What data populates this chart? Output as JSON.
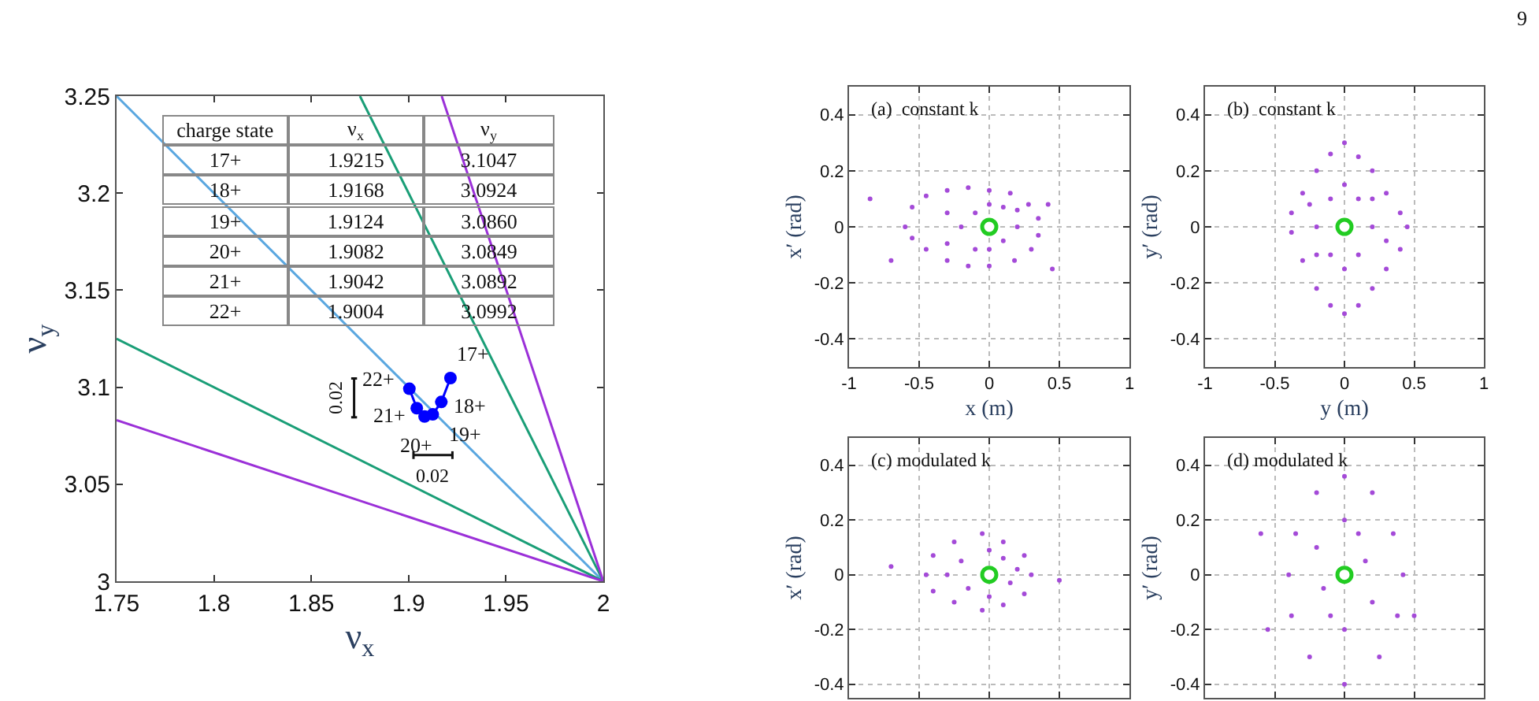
{
  "chart_data": [
    {
      "type": "line",
      "xlabel": "ν$_{x}$",
      "ylabel": "ν$_{y}$",
      "xlim": [
        1.75,
        2
      ],
      "ylim": [
        3,
        3.25
      ],
      "xticks": [
        1.75,
        1.8,
        1.85,
        1.9,
        1.95,
        2
      ],
      "yticks": [
        3,
        3.05,
        3.1,
        3.15,
        3.2,
        3.25
      ],
      "grid": false,
      "series": [
        {
          "marker": "none",
          "color": "#5aa7e0",
          "x": [
            1.75,
            2
          ],
          "values": [
            3.25,
            3
          ]
        },
        {
          "marker": "none",
          "color": "#1a9e77",
          "x": [
            1.75,
            2
          ],
          "values": [
            3.125,
            3
          ]
        },
        {
          "marker": "none",
          "color": "#9b30d8",
          "x": [
            1.75,
            2
          ],
          "values": [
            3.083,
            3
          ]
        },
        {
          "marker": "none",
          "color": "#1a9e77",
          "x": [
            1.875,
            2
          ],
          "values": [
            3.25,
            3
          ]
        },
        {
          "marker": "none",
          "color": "#9b30d8",
          "x": [
            1.917,
            2
          ],
          "values": [
            3.25,
            3
          ]
        },
        {
          "marker": "circle",
          "color": "#0000ff",
          "x": [
            1.9215,
            1.9168,
            1.9124,
            1.9082,
            1.9042,
            1.9004
          ],
          "values": [
            3.1047,
            3.0924,
            3.086,
            3.0849,
            3.0892,
            3.0992
          ]
        }
      ],
      "annotations": [
        "charge state",
        "ν$_{x}$",
        "ν$_{y}$",
        "17+",
        "1.9215",
        "3.1047",
        "18+",
        "1.9168",
        "3.0924",
        "19+",
        "1.9124",
        "3.0860",
        "20+",
        "1.9082",
        "3.0849",
        "21+",
        "1.9042",
        "3.0892",
        "22+",
        "1.9004",
        "3.0992",
        "0.02",
        "0.02",
        {
          "text": "17+",
          "x": 1.9215,
          "y": 3.1047
        },
        {
          "text": "18+",
          "x": 1.9168,
          "y": 3.0924
        },
        {
          "text": "19+",
          "x": 1.9124,
          "y": 3.086
        },
        {
          "text": "20+",
          "x": 1.9082,
          "y": 3.0849
        },
        {
          "text": "21+",
          "x": 1.9042,
          "y": 3.0892
        },
        {
          "text": "22+",
          "x": 1.9004,
          "y": 3.0992
        }
      ]
    },
    {
      "type": "scatter",
      "title": "(a)  constant k",
      "xlabel": "x (m)",
      "ylabel": "x′ (rad)",
      "xlim": [
        -1,
        1
      ],
      "ylim": [
        -0.5,
        0.5
      ],
      "xticks": [
        -1,
        -0.5,
        0,
        0.5,
        1
      ],
      "yticks": [
        -0.4,
        -0.2,
        0,
        0.2,
        0.4
      ],
      "grid": true,
      "series": [
        {
          "marker": "circle",
          "color": "#a44ad8",
          "x": [
            -0.6,
            -0.55,
            -0.45,
            -0.3,
            -0.15,
            0,
            0.15,
            0.28,
            0.35,
            0.35,
            0.3,
            0.18,
            0,
            -0.15,
            -0.3,
            -0.45,
            -0.55,
            -0.3,
            -0.2,
            -0.1,
            0.1,
            0.2,
            0.1,
            -0.1,
            0,
            0,
            0.2,
            -0.3,
            -0.7,
            0.45,
            -0.85,
            0.42
          ],
          "values": [
            0,
            0.07,
            0.11,
            0.13,
            0.14,
            0.13,
            0.12,
            0.08,
            0.03,
            -0.03,
            -0.08,
            -0.12,
            -0.14,
            -0.14,
            -0.12,
            -0.08,
            -0.04,
            0.05,
            0,
            0.05,
            -0.05,
            0,
            0.07,
            -0.08,
            0.08,
            -0.08,
            0.06,
            -0.06,
            -0.12,
            -0.15,
            0.1,
            0.08
          ]
        },
        {
          "type": "scatter",
          "marker": "circle",
          "color": "#22cc22",
          "x": [
            0
          ],
          "values": [
            0
          ]
        }
      ]
    },
    {
      "type": "scatter",
      "title": "(b)  constant k",
      "xlabel": "y (m)",
      "ylabel": "y′ (rad)",
      "xlim": [
        -1,
        1
      ],
      "ylim": [
        -0.5,
        0.5
      ],
      "xticks": [
        -1,
        -0.5,
        0,
        0.5,
        1
      ],
      "yticks": [
        -0.4,
        -0.2,
        0,
        0.2,
        0.4
      ],
      "grid": true,
      "annotations": [
        "9"
      ],
      "series": [
        {
          "marker": "circle",
          "color": "#a44ad8",
          "x": [
            0,
            0.1,
            0.2,
            0.3,
            0.4,
            0.45,
            0.4,
            0.3,
            0.2,
            0.1,
            0,
            -0.1,
            -0.2,
            -0.3,
            -0.38,
            -0.38,
            -0.3,
            -0.2,
            -0.1,
            -0.2,
            0.2,
            0,
            0,
            -0.1,
            0.1,
            0.2,
            -0.2,
            0.1,
            -0.1,
            0.3,
            -0.25
          ],
          "values": [
            0.3,
            0.25,
            0.2,
            0.12,
            0.05,
            0,
            -0.08,
            -0.15,
            -0.22,
            -0.28,
            -0.31,
            -0.28,
            -0.22,
            -0.12,
            -0.02,
            0.05,
            0.12,
            0.2,
            0.26,
            0,
            0,
            0.15,
            -0.15,
            0.1,
            -0.1,
            0.1,
            -0.1,
            0.1,
            -0.1,
            -0.05,
            0.08
          ]
        },
        {
          "type": "scatter",
          "marker": "circle",
          "color": "#22cc22",
          "x": [
            0
          ],
          "values": [
            0
          ]
        }
      ]
    },
    {
      "type": "scatter",
      "title": "(c) modulated k",
      "ylabel": "x′ (rad)",
      "xlim": [
        -1,
        1
      ],
      "ylim": [
        -0.45,
        0.5
      ],
      "xticks": [
        {
          "value": -0.5,
          "label": null
        },
        {
          "value": 0,
          "label": null
        },
        {
          "value": 0.5,
          "label": null
        }
      ],
      "yticks": [
        -0.4,
        -0.2,
        0,
        0.2,
        0.4
      ],
      "grid": true,
      "tick_labels": "y",
      "series": [
        {
          "marker": "circle",
          "color": "#a44ad8",
          "x": [
            -0.45,
            -0.4,
            -0.25,
            -0.05,
            0.1,
            0.25,
            0.3,
            0.25,
            0.1,
            -0.05,
            -0.25,
            -0.4,
            -0.2,
            0.15,
            -0.15,
            0.1,
            0,
            0,
            -0.3,
            0.2,
            -0.7,
            0.5
          ],
          "values": [
            0,
            0.07,
            0.12,
            0.15,
            0.12,
            0.07,
            0,
            -0.07,
            -0.11,
            -0.13,
            -0.1,
            -0.06,
            0.05,
            -0.03,
            -0.05,
            0.06,
            0.09,
            -0.08,
            0,
            0.02,
            0.03,
            -0.02
          ]
        },
        {
          "type": "scatter",
          "marker": "circle",
          "color": "#22cc22",
          "x": [
            0
          ],
          "values": [
            0
          ]
        }
      ]
    },
    {
      "type": "scatter",
      "title": "(d) modulated k",
      "ylabel": "y′ (rad)",
      "xlim": [
        -1,
        1
      ],
      "ylim": [
        -0.45,
        0.5
      ],
      "xticks": [
        {
          "value": -0.5,
          "label": null
        },
        {
          "value": 0,
          "label": null
        },
        {
          "value": 0.5,
          "label": null
        }
      ],
      "yticks": [
        -0.4,
        -0.2,
        0,
        0.2,
        0.4
      ],
      "grid": true,
      "tick_labels": "y",
      "series": [
        {
          "marker": "circle",
          "color": "#a44ad8",
          "x": [
            0,
            0.2,
            0.35,
            0.42,
            0.38,
            0.25,
            0,
            -0.25,
            -0.38,
            -0.4,
            -0.35,
            -0.2,
            0,
            0,
            0.15,
            -0.15,
            0.2,
            -0.2,
            0.1,
            -0.1,
            0.5,
            -0.55,
            -0.6
          ],
          "values": [
            0.36,
            0.3,
            0.15,
            0,
            -0.15,
            -0.3,
            -0.4,
            -0.3,
            -0.15,
            0,
            0.15,
            0.3,
            0.2,
            -0.2,
            0.05,
            -0.05,
            -0.1,
            0.1,
            0.15,
            -0.15,
            -0.15,
            -0.2,
            0.15
          ]
        },
        {
          "type": "scatter",
          "marker": "circle",
          "color": "#22cc22",
          "x": [
            0
          ],
          "values": [
            0
          ]
        }
      ]
    }
  ]
}
